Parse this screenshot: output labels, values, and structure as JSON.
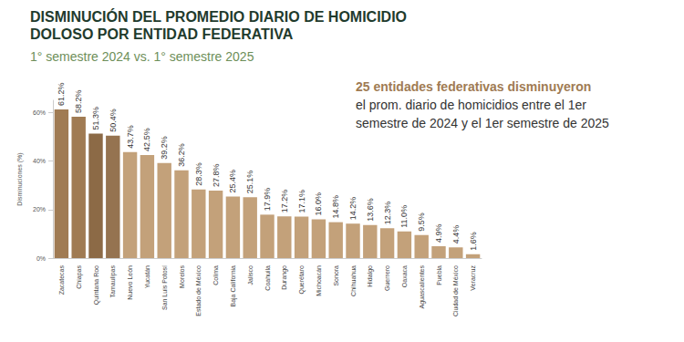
{
  "chart_data": {
    "type": "bar",
    "title": "DISMINUCIÓN DEL PROMEDIO DIARIO DE HOMICIDIO\nDOLOSO POR ENTIDAD FEDERATIVA",
    "subtitle": "1° semestre 2024 vs. 1° semestre 2025",
    "annotation": [
      "25 entidades federativas disminuyeron",
      "el prom. diario de homicidios entre el 1er",
      "semestre de 2024 y el 1er semestre de 2025"
    ],
    "y_label": "Disminuciones (%)",
    "categories": [
      "Zacatecas",
      "Chiapas",
      "Quintana Roo",
      "Tamaulipas",
      "Nuevo León",
      "Yucatán",
      "San Luis Potosí",
      "Morelos",
      "Estado de México",
      "Colima",
      "Baja California",
      "Jalisco",
      "Coahuila",
      "Durango",
      "Querétaro",
      "Michoacán",
      "Sonora",
      "Chihuahua",
      "Hidalgo",
      "Guerrero",
      "Oaxaca",
      "Aguascalientes",
      "Puebla",
      "Ciudad de México",
      "Veracruz"
    ],
    "values": [
      61.2,
      58.2,
      51.3,
      50.4,
      43.7,
      42.5,
      39.2,
      36.2,
      28.3,
      27.8,
      25.4,
      25.1,
      17.9,
      17.2,
      17.1,
      16.0,
      14.8,
      14.2,
      13.6,
      12.3,
      11.0,
      9.5,
      4.9,
      4.4,
      1.6
    ],
    "value_labels": [
      "61.2%",
      "58.2%",
      "51.3%",
      "50.4%",
      "43.7%",
      "42.5%",
      "39.2%",
      "36.2%",
      "28.3%",
      "27.8%",
      "25.4%",
      "25.1%",
      "17.9%",
      "17.2%",
      "17.1%",
      "16.0%",
      "14.8%",
      "14.2%",
      "13.6%",
      "12.3%",
      "11.0%",
      "9.5%",
      "4.9%",
      "4.4%",
      "1.6%"
    ],
    "colors": [
      "#a07b53",
      "#a07b53",
      "#8c6a46",
      "#957350",
      "#c3a17a",
      "#c3a17a",
      "#c3a17a",
      "#c3a17a",
      "#c3a17a",
      "#c3a17a",
      "#c3a17a",
      "#c3a17a",
      "#c3a17a",
      "#c3a17a",
      "#c3a17a",
      "#c3a17a",
      "#c3a17a",
      "#c3a17a",
      "#c3a17a",
      "#c3a17a",
      "#c3a17a",
      "#c3a17a",
      "#c3a17a",
      "#c3a17a",
      "#c3a17a"
    ],
    "ylim": [
      0,
      65
    ],
    "yticks": [
      {
        "value": 0,
        "label": "0%"
      },
      {
        "value": 20,
        "label": "20%"
      },
      {
        "value": 40,
        "label": "40%"
      },
      {
        "value": 60,
        "label": "60%"
      }
    ],
    "grid": false,
    "data_labels": true
  }
}
